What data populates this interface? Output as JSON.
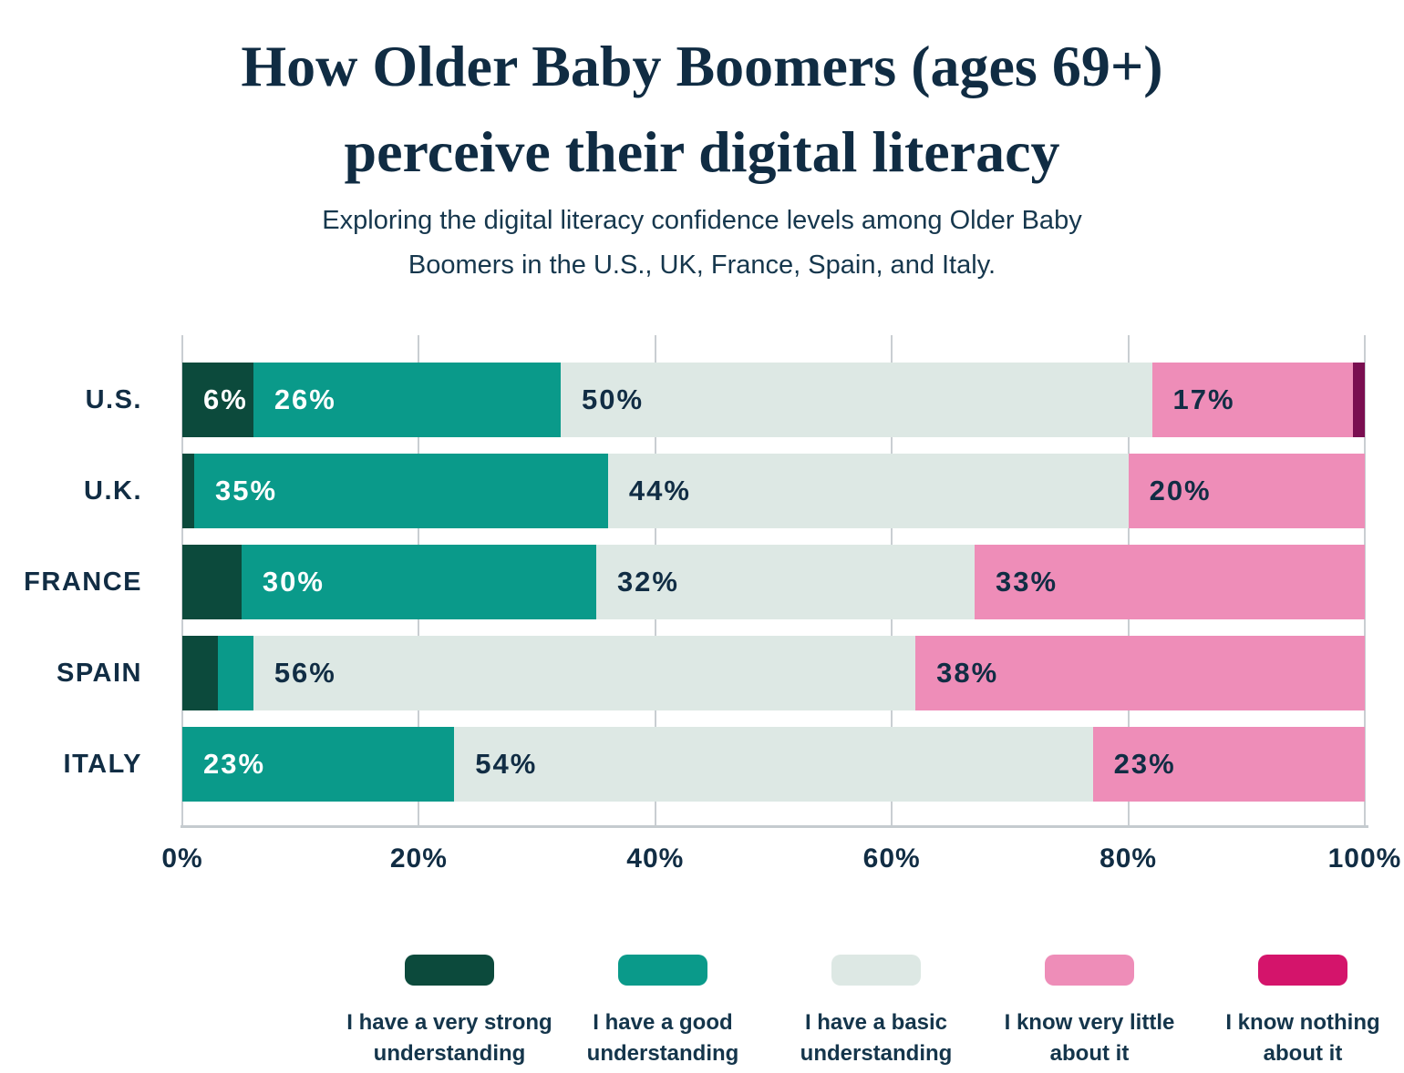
{
  "header": {
    "title_line1": "How Older Baby Boomers (ages 69+)",
    "title_line2": "perceive their digital literacy",
    "subtitle_line1": "Exploring the digital literacy confidence levels among Older Baby",
    "subtitle_line2": "Boomers in the U.S., UK, France, Spain, and Italy."
  },
  "colors": {
    "background": "#ffffff",
    "text_navy": "#112d44",
    "gridline": "#c9ced2"
  },
  "chart_data": {
    "type": "bar",
    "variant": "horizontal-stacked-percent",
    "title": "How Older Baby Boomers (ages 69+) perceive their digital literacy",
    "subtitle": "Exploring the digital literacy confidence levels among Older Baby Boomers in the U.S., UK, France, Spain, and Italy.",
    "categories": [
      "U.S.",
      "U.K.",
      "FRANCE",
      "SPAIN",
      "ITALY"
    ],
    "series": [
      {
        "name": "I have a very strong understanding",
        "label_lines": [
          "I have a very strong",
          "understanding"
        ],
        "color": "#0c4a3c",
        "label_color": "#ffffff",
        "values": [
          6,
          1,
          5,
          3,
          0
        ]
      },
      {
        "name": "I have a good understanding",
        "label_lines": [
          "I have a good",
          "understanding"
        ],
        "color": "#0a9a8a",
        "label_color": "#ffffff",
        "values": [
          26,
          35,
          30,
          3,
          23
        ]
      },
      {
        "name": "I have a basic understanding",
        "label_lines": [
          "I have a basic",
          "understanding"
        ],
        "color": "#dde8e4",
        "label_color": "#112d44",
        "values": [
          50,
          44,
          32,
          56,
          54
        ]
      },
      {
        "name": "I know very little about it",
        "label_lines": [
          "I know very little",
          "about it"
        ],
        "color": "#ee8db8",
        "label_color": "#112d44",
        "values": [
          17,
          20,
          33,
          38,
          23
        ]
      },
      {
        "name": "I know nothing about it",
        "label_lines": [
          "I know nothing",
          "about it"
        ],
        "color": "#7a0e50",
        "legend_color": "#d4146b",
        "label_color": "#112d44",
        "values": [
          1,
          0,
          0,
          0,
          0
        ]
      }
    ],
    "min_label_value": 6,
    "x_ticks": [
      "0%",
      "20%",
      "40%",
      "60%",
      "80%",
      "100%"
    ],
    "xlim": [
      0,
      100
    ],
    "grid": true,
    "legend_position": "bottom"
  }
}
